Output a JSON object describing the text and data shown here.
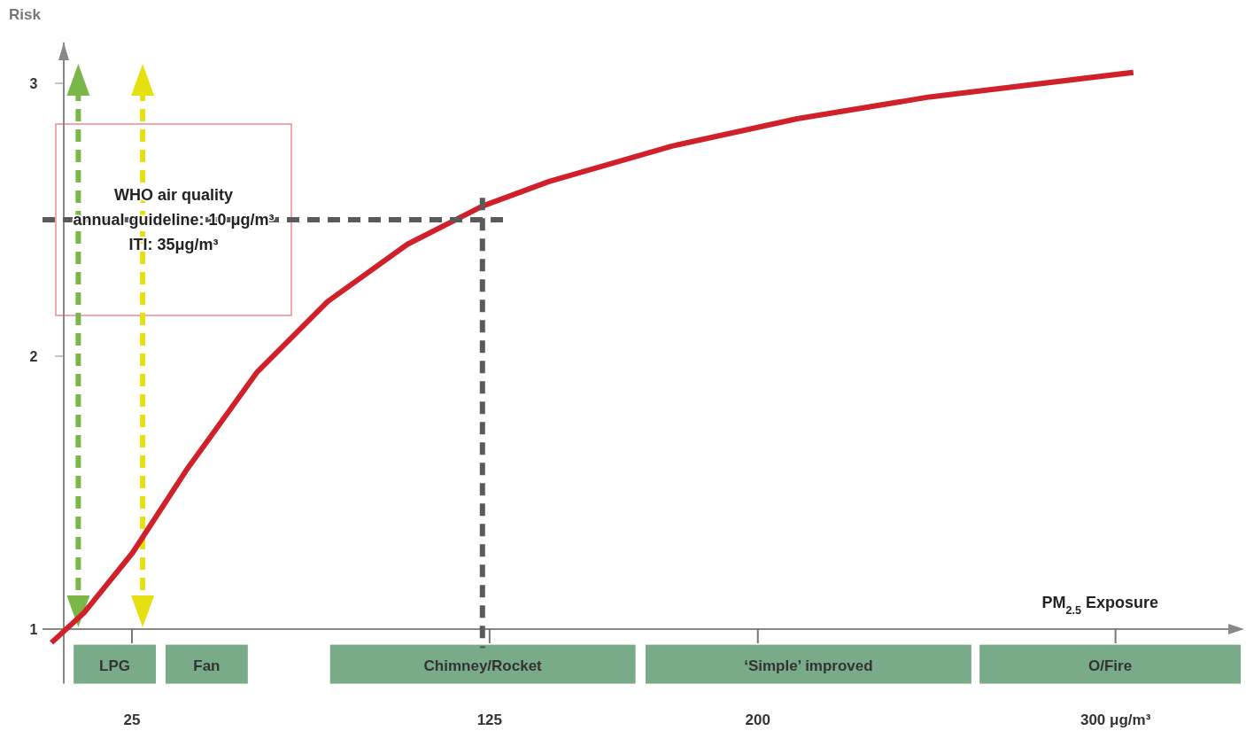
{
  "chart_data": {
    "type": "line",
    "xlabel": "PM$_{2.5}$ Exposure",
    "ylabel": "Risk",
    "xlim": [
      0,
      335
    ],
    "ylim": [
      0.8,
      3.15
    ],
    "xticks": [
      25,
      125,
      200,
      {
        "value": 300,
        "label": "300 μg/m³"
      }
    ],
    "yticks": [
      1,
      2,
      3
    ],
    "series": [
      {
        "color": "#d0202a",
        "x": [
          2.5,
          11.6,
          25.2,
          40.1,
          59.9,
          79.7,
          102,
          123,
          141.6,
          176,
          211,
          248,
          305
        ],
        "values": [
          0.95,
          1.06,
          1.28,
          1.58,
          1.94,
          2.2,
          2.41,
          2.55,
          2.64,
          2.77,
          2.87,
          2.95,
          3.04
        ]
      },
      {
        "color": "#5a5a5a",
        "line_style": "dashed",
        "x": [
          0,
          130
        ],
        "values": [
          2.5,
          2.5
        ]
      },
      {
        "color": "#5a5a5a",
        "line_style": "dashed",
        "x": [
          123,
          123
        ],
        "values": [
          2.58,
          0.93
        ]
      }
    ],
    "ref_lines": [
      {
        "axis": "x",
        "value": 10,
        "color": "#7ab648",
        "line_style": "dashed"
      },
      {
        "axis": "x",
        "value": 28,
        "color": "#e6e010",
        "line_style": "dashed"
      }
    ],
    "bands": [
      {
        "axis": "x",
        "from": 8.7,
        "to": 31.7,
        "label": "LPG",
        "color": "#7aab88"
      },
      {
        "axis": "x",
        "from": 34.4,
        "to": 57.4,
        "label": "Fan",
        "color": "#7aab88"
      },
      {
        "axis": "x",
        "from": 80.4,
        "to": 165.8,
        "label": "Chimney/Rocket",
        "color": "#7aab88"
      },
      {
        "axis": "x",
        "from": 168.6,
        "to": 259.7,
        "label": "‘Simple’ improved",
        "color": "#7aab88"
      },
      {
        "axis": "x",
        "from": 262,
        "to": 335,
        "label": "O/Fire",
        "color": "#7aab88"
      }
    ],
    "annotations": [
      "WHO air quality",
      "annual guideline: 10 μg/m³",
      "ITI: 35μg/m³"
    ]
  }
}
